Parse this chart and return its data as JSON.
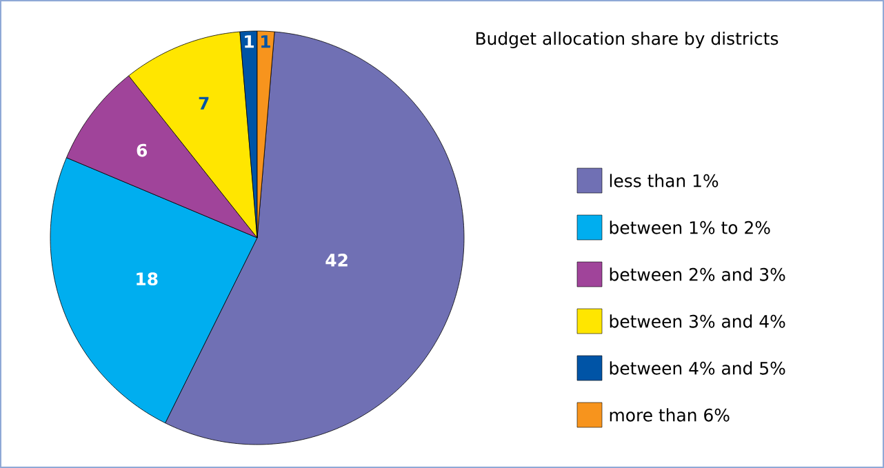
{
  "chart_data": {
    "type": "pie",
    "title": "Budget allocation share by districts",
    "categories": [
      "less than 1%",
      "between 1% to 2%",
      "between 2% and 3%",
      "between 3% and 4%",
      "between 4% and 5%",
      "more than 6%"
    ],
    "values": [
      42,
      18,
      6,
      7,
      1,
      1
    ],
    "colors": [
      "#7070b4",
      "#00aeef",
      "#a0449a",
      "#ffe600",
      "#0054a6",
      "#f7941d"
    ],
    "data_labels": true,
    "legend": "right"
  }
}
